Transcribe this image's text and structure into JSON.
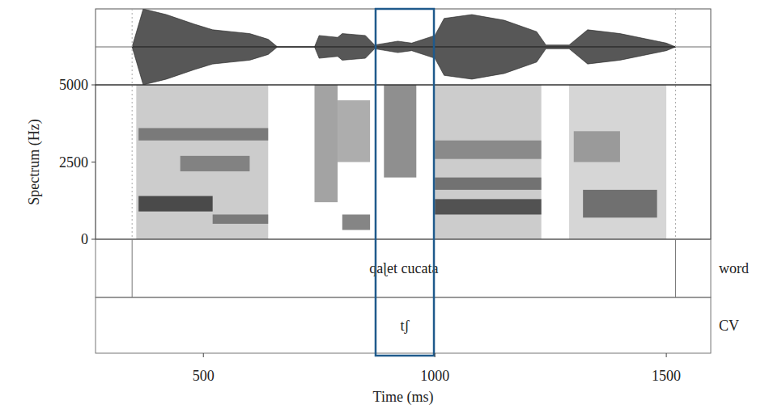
{
  "chart_data": {
    "type": "spectrogram",
    "xlabel": "Time (ms)",
    "ylabel": "Spectrum (Hz)",
    "xlim": [
      267,
      1596
    ],
    "xticks": [
      500,
      1000,
      1500
    ],
    "ylim": [
      0,
      5000
    ],
    "yticks": [
      0,
      2500,
      5000
    ],
    "waveform": {
      "ylim": [
        -1,
        1
      ],
      "x": [
        346,
        370,
        420,
        480,
        520,
        560,
        600,
        640,
        660,
        740,
        750,
        790,
        800,
        850,
        870,
        920,
        950,
        1000,
        1020,
        1080,
        1150,
        1220,
        1240,
        1290,
        1330,
        1400,
        1500,
        1520
      ],
      "amplitude": [
        0,
        1,
        0.85,
        0.6,
        0.45,
        0.4,
        0.35,
        0.2,
        0,
        0,
        0.3,
        0.25,
        0.35,
        0.3,
        0.05,
        0.15,
        0.1,
        0.3,
        0.75,
        0.85,
        0.7,
        0.4,
        0.05,
        0.05,
        0.45,
        0.35,
        0.1,
        0
      ]
    },
    "spectrogram": [
      {
        "start": 355,
        "end": 640,
        "low": 0,
        "high": 5000,
        "intensity": 0.25
      },
      {
        "start": 360,
        "end": 520,
        "low": 900,
        "high": 1400,
        "intensity": 0.8
      },
      {
        "start": 520,
        "end": 640,
        "low": 500,
        "high": 800,
        "intensity": 0.5
      },
      {
        "start": 360,
        "end": 640,
        "low": 3200,
        "high": 3600,
        "intensity": 0.5
      },
      {
        "start": 450,
        "end": 600,
        "low": 2200,
        "high": 2700,
        "intensity": 0.45
      },
      {
        "start": 740,
        "end": 790,
        "low": 1200,
        "high": 5000,
        "intensity": 0.45
      },
      {
        "start": 790,
        "end": 860,
        "low": 2500,
        "high": 4500,
        "intensity": 0.4
      },
      {
        "start": 800,
        "end": 860,
        "low": 300,
        "high": 800,
        "intensity": 0.6
      },
      {
        "start": 890,
        "end": 960,
        "low": 2000,
        "high": 5000,
        "intensity": 0.55
      },
      {
        "start": 1000,
        "end": 1230,
        "low": 0,
        "high": 5000,
        "intensity": 0.25
      },
      {
        "start": 1000,
        "end": 1230,
        "low": 800,
        "high": 1300,
        "intensity": 0.75
      },
      {
        "start": 1000,
        "end": 1230,
        "low": 1600,
        "high": 2000,
        "intensity": 0.55
      },
      {
        "start": 1000,
        "end": 1230,
        "low": 2600,
        "high": 3200,
        "intensity": 0.4
      },
      {
        "start": 1290,
        "end": 1500,
        "low": 0,
        "high": 5000,
        "intensity": 0.2
      },
      {
        "start": 1320,
        "end": 1480,
        "low": 700,
        "high": 1600,
        "intensity": 0.6
      },
      {
        "start": 1300,
        "end": 1400,
        "low": 2500,
        "high": 3500,
        "intensity": 0.35
      }
    ],
    "tiers": [
      {
        "name": "word",
        "intervals": [
          {
            "start": 346,
            "end": 1520,
            "label": "qaɭet cucata"
          }
        ]
      },
      {
        "name": "CV",
        "intervals": [
          {
            "start": 872,
            "end": 998,
            "label": "tʃ"
          }
        ]
      }
    ],
    "highlight": {
      "start": 872,
      "end": 998,
      "color": "#1f5a8c"
    }
  }
}
